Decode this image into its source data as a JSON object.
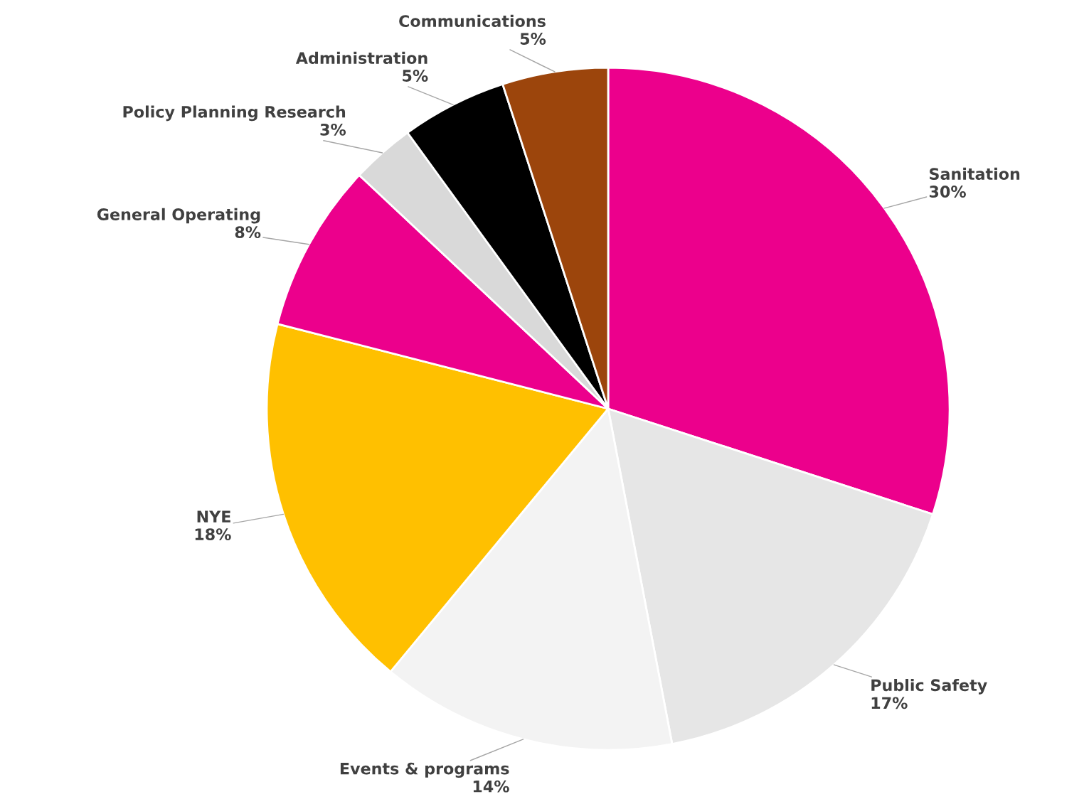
{
  "chart_data": {
    "type": "pie",
    "categories": [
      "Sanitation",
      "Public Safety",
      "Events & programs",
      "NYE",
      "General Operating",
      "Policy Planning Research",
      "Administration",
      "Communications"
    ],
    "values": [
      30,
      17,
      14,
      18,
      8,
      3,
      5,
      5
    ],
    "colors": [
      "#ec008c",
      "#e6e6e6",
      "#f3f3f3",
      "#ffc000",
      "#ec008c",
      "#d9d9d9",
      "#000000",
      "#9c450c"
    ],
    "value_labels": [
      "30%",
      "17%",
      "14%",
      "18%",
      "8%",
      "3%",
      "5%",
      "5%"
    ]
  }
}
